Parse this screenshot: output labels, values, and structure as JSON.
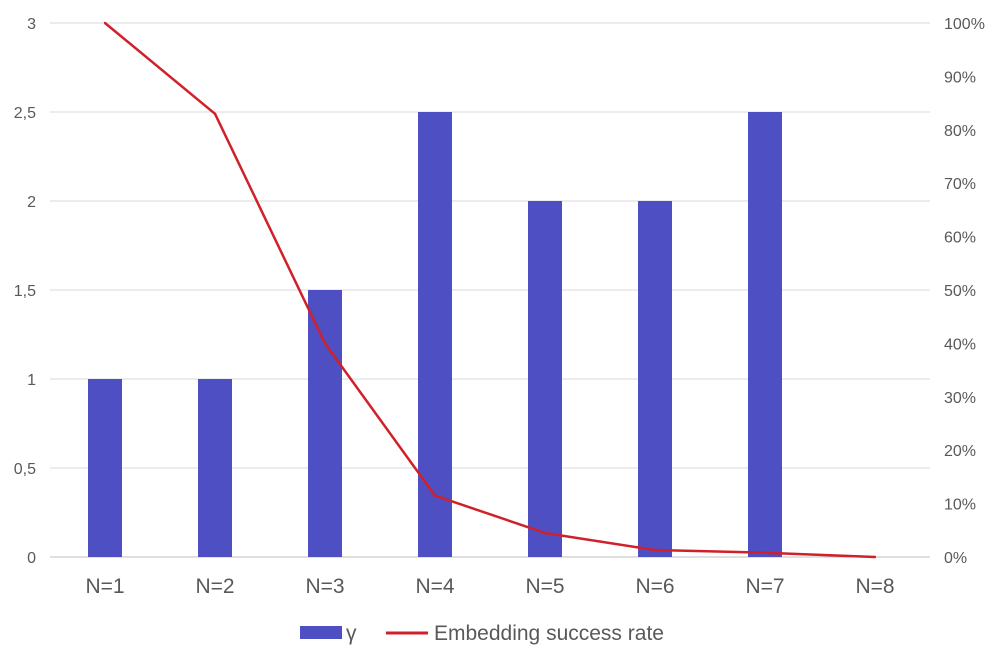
{
  "chart_data": {
    "type": "bar",
    "categories": [
      "N=1",
      "N=2",
      "N=3",
      "N=4",
      "N=5",
      "N=6",
      "N=7",
      "N=8"
    ],
    "series": [
      {
        "name": "γ",
        "type": "bar",
        "axis": "left",
        "color": "#4f4fc4",
        "values": [
          1,
          1,
          1.5,
          2.5,
          2,
          2,
          2.5,
          0
        ]
      },
      {
        "name": "Embedding success rate",
        "type": "line",
        "axis": "right",
        "color": "#d0202a",
        "values": [
          1.0,
          0.83,
          0.4,
          0.115,
          0.045,
          0.013,
          0.008,
          0.0
        ]
      }
    ],
    "y_left": {
      "ylim": [
        0,
        3
      ],
      "ticks": [
        "0",
        "0,5",
        "1",
        "1,5",
        "2",
        "2,5",
        "3"
      ]
    },
    "y_right": {
      "ylim": [
        0,
        1
      ],
      "ticks": [
        "0%",
        "10%",
        "20%",
        "30%",
        "40%",
        "50%",
        "60%",
        "70%",
        "80%",
        "90%",
        "100%"
      ]
    },
    "grid": true,
    "legend": "bottom"
  }
}
